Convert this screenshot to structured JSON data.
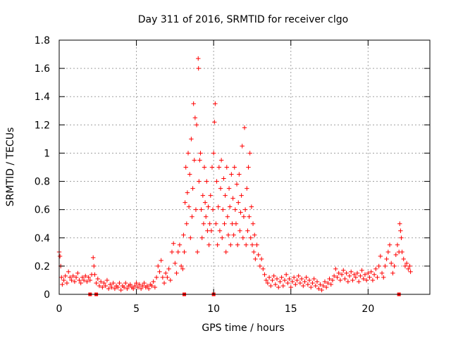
{
  "chart_data": {
    "type": "scatter",
    "title": "Day 311 of 2016, SRMTID for receiver clgo",
    "xlabel": "GPS time / hours",
    "ylabel": "SRMTID / TECUs",
    "xlim": [
      0,
      24
    ],
    "ylim": [
      0,
      1.8
    ],
    "xticks": [
      0,
      5,
      10,
      15,
      20
    ],
    "xtick_labels": [
      "0",
      "5",
      "10",
      "15",
      "20"
    ],
    "yticks": [
      0,
      0.2,
      0.4,
      0.6,
      0.8,
      1,
      1.2,
      1.4,
      1.6,
      1.8
    ],
    "ytick_labels": [
      "0",
      "0.2",
      "0.4",
      "0.6",
      "0.8",
      "1",
      "1.2",
      "1.4",
      "1.6",
      "1.8"
    ],
    "grid": true,
    "marker": "plus",
    "series": [
      {
        "name": "SRMTID",
        "color": "#ff0000",
        "points": [
          [
            0.0,
            0.3
          ],
          [
            0.05,
            0.27
          ],
          [
            0.1,
            0.2
          ],
          [
            0.15,
            0.12
          ],
          [
            0.2,
            0.07
          ],
          [
            0.3,
            0.1
          ],
          [
            0.4,
            0.13
          ],
          [
            0.5,
            0.08
          ],
          [
            0.6,
            0.16
          ],
          [
            0.7,
            0.12
          ],
          [
            0.8,
            0.1
          ],
          [
            0.9,
            0.13
          ],
          [
            1.0,
            0.09
          ],
          [
            1.1,
            0.12
          ],
          [
            1.2,
            0.15
          ],
          [
            1.3,
            0.1
          ],
          [
            1.4,
            0.08
          ],
          [
            1.5,
            0.12
          ],
          [
            1.6,
            0.1
          ],
          [
            1.7,
            0.13
          ],
          [
            1.8,
            0.09
          ],
          [
            1.9,
            0.12
          ],
          [
            2.0,
            0.1
          ],
          [
            2.1,
            0.14
          ],
          [
            2.2,
            0.26
          ],
          [
            2.25,
            0.2
          ],
          [
            2.3,
            0.14
          ],
          [
            2.4,
            0.08
          ],
          [
            2.5,
            0.11
          ],
          [
            2.6,
            0.06
          ],
          [
            2.7,
            0.09
          ],
          [
            2.8,
            0.05
          ],
          [
            2.9,
            0.08
          ],
          [
            3.0,
            0.06
          ],
          [
            3.1,
            0.1
          ],
          [
            3.2,
            0.04
          ],
          [
            3.3,
            0.07
          ],
          [
            3.4,
            0.05
          ],
          [
            3.5,
            0.08
          ],
          [
            3.6,
            0.04
          ],
          [
            3.7,
            0.06
          ],
          [
            3.8,
            0.05
          ],
          [
            3.9,
            0.08
          ],
          [
            4.0,
            0.03
          ],
          [
            4.1,
            0.06
          ],
          [
            4.2,
            0.05
          ],
          [
            4.3,
            0.08
          ],
          [
            4.4,
            0.04
          ],
          [
            4.5,
            0.06
          ],
          [
            4.6,
            0.07
          ],
          [
            4.7,
            0.05
          ],
          [
            4.8,
            0.04
          ],
          [
            4.9,
            0.06
          ],
          [
            5.0,
            0.08
          ],
          [
            5.1,
            0.05
          ],
          [
            5.2,
            0.07
          ],
          [
            5.3,
            0.04
          ],
          [
            5.4,
            0.06
          ],
          [
            5.5,
            0.08
          ],
          [
            5.6,
            0.05
          ],
          [
            5.7,
            0.06
          ],
          [
            5.8,
            0.04
          ],
          [
            5.9,
            0.07
          ],
          [
            6.0,
            0.06
          ],
          [
            6.1,
            0.09
          ],
          [
            6.2,
            0.05
          ],
          [
            6.3,
            0.12
          ],
          [
            6.4,
            0.2
          ],
          [
            6.5,
            0.16
          ],
          [
            6.6,
            0.24
          ],
          [
            6.7,
            0.12
          ],
          [
            6.8,
            0.08
          ],
          [
            6.9,
            0.15
          ],
          [
            7.0,
            0.12
          ],
          [
            7.1,
            0.18
          ],
          [
            7.2,
            0.1
          ],
          [
            7.3,
            0.3
          ],
          [
            7.4,
            0.36
          ],
          [
            7.5,
            0.22
          ],
          [
            7.6,
            0.15
          ],
          [
            7.7,
            0.3
          ],
          [
            7.8,
            0.35
          ],
          [
            7.9,
            0.2
          ],
          [
            8.0,
            0.18
          ],
          [
            8.05,
            0.42
          ],
          [
            8.1,
            0.3
          ],
          [
            8.15,
            0.65
          ],
          [
            8.2,
            0.9
          ],
          [
            8.25,
            0.5
          ],
          [
            8.3,
            0.72
          ],
          [
            8.35,
            1.0
          ],
          [
            8.4,
            0.62
          ],
          [
            8.45,
            0.85
          ],
          [
            8.5,
            0.4
          ],
          [
            8.55,
            1.1
          ],
          [
            8.6,
            0.55
          ],
          [
            8.65,
            0.75
          ],
          [
            8.7,
            1.35
          ],
          [
            8.75,
            0.95
          ],
          [
            8.8,
            1.25
          ],
          [
            8.85,
            0.6
          ],
          [
            8.9,
            1.2
          ],
          [
            8.95,
            0.3
          ],
          [
            9.0,
            1.67
          ],
          [
            9.02,
            1.6
          ],
          [
            9.05,
            0.8
          ],
          [
            9.1,
            0.95
          ],
          [
            9.15,
            1.0
          ],
          [
            9.2,
            0.6
          ],
          [
            9.25,
            0.4
          ],
          [
            9.3,
            0.7
          ],
          [
            9.35,
            0.5
          ],
          [
            9.4,
            0.9
          ],
          [
            9.45,
            0.65
          ],
          [
            9.5,
            0.55
          ],
          [
            9.55,
            0.8
          ],
          [
            9.6,
            0.45
          ],
          [
            9.65,
            0.62
          ],
          [
            9.7,
            0.35
          ],
          [
            9.75,
            0.5
          ],
          [
            9.8,
            0.7
          ],
          [
            9.85,
            0.45
          ],
          [
            9.9,
            0.9
          ],
          [
            9.95,
            0.6
          ],
          [
            10.0,
            1.0
          ],
          [
            10.05,
            1.22
          ],
          [
            10.1,
            1.35
          ],
          [
            10.15,
            0.5
          ],
          [
            10.2,
            0.8
          ],
          [
            10.25,
            0.35
          ],
          [
            10.3,
            0.62
          ],
          [
            10.35,
            0.9
          ],
          [
            10.4,
            0.45
          ],
          [
            10.45,
            0.75
          ],
          [
            10.5,
            0.95
          ],
          [
            10.55,
            0.4
          ],
          [
            10.6,
            0.6
          ],
          [
            10.65,
            0.82
          ],
          [
            10.7,
            0.5
          ],
          [
            10.75,
            0.7
          ],
          [
            10.8,
            0.3
          ],
          [
            10.85,
            0.9
          ],
          [
            10.9,
            0.55
          ],
          [
            10.95,
            0.42
          ],
          [
            11.0,
            0.75
          ],
          [
            11.05,
            0.62
          ],
          [
            11.1,
            0.35
          ],
          [
            11.15,
            0.85
          ],
          [
            11.2,
            0.5
          ],
          [
            11.25,
            0.68
          ],
          [
            11.3,
            0.42
          ],
          [
            11.35,
            0.9
          ],
          [
            11.4,
            0.6
          ],
          [
            11.45,
            0.5
          ],
          [
            11.5,
            0.78
          ],
          [
            11.55,
            0.35
          ],
          [
            11.6,
            0.65
          ],
          [
            11.65,
            0.85
          ],
          [
            11.7,
            0.45
          ],
          [
            11.75,
            0.58
          ],
          [
            11.8,
            0.7
          ],
          [
            11.85,
            1.05
          ],
          [
            11.9,
            0.4
          ],
          [
            11.95,
            0.55
          ],
          [
            12.0,
            1.18
          ],
          [
            12.05,
            0.6
          ],
          [
            12.1,
            0.35
          ],
          [
            12.15,
            0.75
          ],
          [
            12.2,
            0.45
          ],
          [
            12.25,
            0.9
          ],
          [
            12.3,
            0.55
          ],
          [
            12.35,
            1.0
          ],
          [
            12.4,
            0.4
          ],
          [
            12.45,
            0.62
          ],
          [
            12.5,
            0.35
          ],
          [
            12.55,
            0.5
          ],
          [
            12.6,
            0.3
          ],
          [
            12.65,
            0.42
          ],
          [
            12.7,
            0.25
          ],
          [
            12.8,
            0.35
          ],
          [
            12.9,
            0.28
          ],
          [
            13.0,
            0.2
          ],
          [
            13.1,
            0.25
          ],
          [
            13.2,
            0.18
          ],
          [
            13.3,
            0.14
          ],
          [
            13.4,
            0.1
          ],
          [
            13.5,
            0.08
          ],
          [
            13.6,
            0.12
          ],
          [
            13.7,
            0.06
          ],
          [
            13.8,
            0.1
          ],
          [
            13.9,
            0.13
          ],
          [
            14.0,
            0.07
          ],
          [
            14.1,
            0.11
          ],
          [
            14.2,
            0.05
          ],
          [
            14.3,
            0.09
          ],
          [
            14.4,
            0.12
          ],
          [
            14.5,
            0.06
          ],
          [
            14.6,
            0.1
          ],
          [
            14.7,
            0.14
          ],
          [
            14.8,
            0.08
          ],
          [
            14.9,
            0.11
          ],
          [
            15.0,
            0.05
          ],
          [
            15.1,
            0.09
          ],
          [
            15.2,
            0.12
          ],
          [
            15.3,
            0.07
          ],
          [
            15.4,
            0.1
          ],
          [
            15.5,
            0.13
          ],
          [
            15.6,
            0.08
          ],
          [
            15.7,
            0.11
          ],
          [
            15.8,
            0.06
          ],
          [
            15.9,
            0.09
          ],
          [
            16.0,
            0.12
          ],
          [
            16.1,
            0.07
          ],
          [
            16.2,
            0.1
          ],
          [
            16.3,
            0.05
          ],
          [
            16.4,
            0.08
          ],
          [
            16.5,
            0.11
          ],
          [
            16.6,
            0.06
          ],
          [
            16.7,
            0.09
          ],
          [
            16.8,
            0.04
          ],
          [
            16.9,
            0.07
          ],
          [
            17.0,
            0.03
          ],
          [
            17.1,
            0.06
          ],
          [
            17.2,
            0.09
          ],
          [
            17.3,
            0.05
          ],
          [
            17.4,
            0.08
          ],
          [
            17.5,
            0.11
          ],
          [
            17.6,
            0.07
          ],
          [
            17.7,
            0.1
          ],
          [
            17.8,
            0.13
          ],
          [
            17.9,
            0.18
          ],
          [
            18.0,
            0.12
          ],
          [
            18.1,
            0.15
          ],
          [
            18.2,
            0.1
          ],
          [
            18.3,
            0.14
          ],
          [
            18.4,
            0.17
          ],
          [
            18.5,
            0.11
          ],
          [
            18.6,
            0.15
          ],
          [
            18.7,
            0.09
          ],
          [
            18.8,
            0.13
          ],
          [
            18.9,
            0.16
          ],
          [
            19.0,
            0.1
          ],
          [
            19.1,
            0.14
          ],
          [
            19.2,
            0.12
          ],
          [
            19.3,
            0.15
          ],
          [
            19.4,
            0.09
          ],
          [
            19.5,
            0.13
          ],
          [
            19.6,
            0.17
          ],
          [
            19.7,
            0.11
          ],
          [
            19.8,
            0.14
          ],
          [
            19.9,
            0.1
          ],
          [
            20.0,
            0.15
          ],
          [
            20.1,
            0.12
          ],
          [
            20.2,
            0.16
          ],
          [
            20.3,
            0.1
          ],
          [
            20.4,
            0.14
          ],
          [
            20.5,
            0.18
          ],
          [
            20.6,
            0.12
          ],
          [
            20.7,
            0.2
          ],
          [
            20.8,
            0.27
          ],
          [
            20.9,
            0.15
          ],
          [
            21.0,
            0.12
          ],
          [
            21.1,
            0.2
          ],
          [
            21.2,
            0.25
          ],
          [
            21.3,
            0.3
          ],
          [
            21.4,
            0.35
          ],
          [
            21.5,
            0.22
          ],
          [
            21.6,
            0.15
          ],
          [
            21.7,
            0.2
          ],
          [
            21.8,
            0.28
          ],
          [
            21.9,
            0.35
          ],
          [
            22.0,
            0.3
          ],
          [
            22.05,
            0.5
          ],
          [
            22.1,
            0.45
          ],
          [
            22.15,
            0.4
          ],
          [
            22.2,
            0.3
          ],
          [
            22.3,
            0.25
          ],
          [
            22.4,
            0.2
          ],
          [
            22.5,
            0.22
          ],
          [
            22.6,
            0.18
          ],
          [
            22.7,
            0.2
          ],
          [
            22.75,
            0.16
          ]
        ]
      }
    ],
    "axis_minimum_markers": [
      [
        2.0,
        0.0
      ],
      [
        2.4,
        0.0
      ],
      [
        8.1,
        0.0
      ],
      [
        10.0,
        0.0
      ],
      [
        22.0,
        0.0
      ]
    ]
  }
}
